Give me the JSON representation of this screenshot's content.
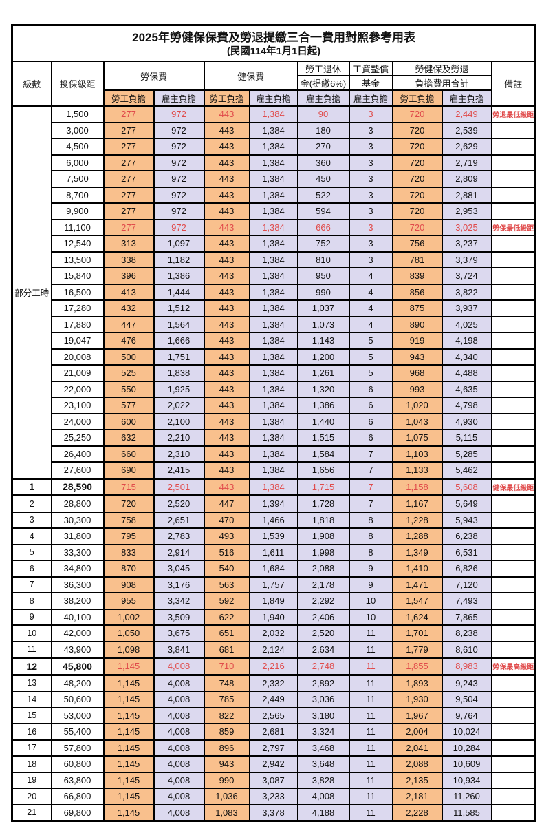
{
  "title": "2025年勞健保保費及勞退提繳三合一費用對照參考用表",
  "subtitle": "(民國114年1月1日起)",
  "header": {
    "level": "級數",
    "bracket": "投保級距",
    "labor_ins": "勞保費",
    "health_ins": "健保費",
    "pension_line1": "勞工退休",
    "pension_line2": "金(提繳6%)",
    "wage_fund_line1": "工資墊償",
    "wage_fund_line2": "基金",
    "total_line1": "勞健保及勞退",
    "total_line2": "負擔費用合計",
    "remark": "備註",
    "employee": "勞工負擔",
    "employer": "雇主負擔"
  },
  "part_time_label": "部分工時",
  "colors": {
    "employee_bg": "#f9c08d",
    "employer_bg": "#dcd9ef",
    "highlight_text": "#e04b4b"
  },
  "rows": [
    {
      "level": null,
      "bracket": "1,500",
      "values": [
        "277",
        "972",
        "443",
        "1,384",
        "90",
        "3",
        "720",
        "2,449"
      ],
      "remark": "勞退最低級距",
      "highlight": true,
      "thick": false
    },
    {
      "level": null,
      "bracket": "3,000",
      "values": [
        "277",
        "972",
        "443",
        "1,384",
        "180",
        "3",
        "720",
        "2,539"
      ],
      "remark": "",
      "highlight": false,
      "thick": false
    },
    {
      "level": null,
      "bracket": "4,500",
      "values": [
        "277",
        "972",
        "443",
        "1,384",
        "270",
        "3",
        "720",
        "2,629"
      ],
      "remark": "",
      "highlight": false,
      "thick": false
    },
    {
      "level": null,
      "bracket": "6,000",
      "values": [
        "277",
        "972",
        "443",
        "1,384",
        "360",
        "3",
        "720",
        "2,719"
      ],
      "remark": "",
      "highlight": false,
      "thick": false
    },
    {
      "level": null,
      "bracket": "7,500",
      "values": [
        "277",
        "972",
        "443",
        "1,384",
        "450",
        "3",
        "720",
        "2,809"
      ],
      "remark": "",
      "highlight": false,
      "thick": false
    },
    {
      "level": null,
      "bracket": "8,700",
      "values": [
        "277",
        "972",
        "443",
        "1,384",
        "522",
        "3",
        "720",
        "2,881"
      ],
      "remark": "",
      "highlight": false,
      "thick": false
    },
    {
      "level": null,
      "bracket": "9,900",
      "values": [
        "277",
        "972",
        "443",
        "1,384",
        "594",
        "3",
        "720",
        "2,953"
      ],
      "remark": "",
      "highlight": false,
      "thick": false
    },
    {
      "level": null,
      "bracket": "11,100",
      "values": [
        "277",
        "972",
        "443",
        "1,384",
        "666",
        "3",
        "720",
        "3,025"
      ],
      "remark": "勞保最低級距",
      "highlight": true,
      "thick": false
    },
    {
      "level": null,
      "bracket": "12,540",
      "values": [
        "313",
        "1,097",
        "443",
        "1,384",
        "752",
        "3",
        "756",
        "3,237"
      ],
      "remark": "",
      "highlight": false,
      "thick": false
    },
    {
      "level": null,
      "bracket": "13,500",
      "values": [
        "338",
        "1,182",
        "443",
        "1,384",
        "810",
        "3",
        "781",
        "3,379"
      ],
      "remark": "",
      "highlight": false,
      "thick": false
    },
    {
      "level": null,
      "bracket": "15,840",
      "values": [
        "396",
        "1,386",
        "443",
        "1,384",
        "950",
        "4",
        "839",
        "3,724"
      ],
      "remark": "",
      "highlight": false,
      "thick": false
    },
    {
      "level": null,
      "bracket": "16,500",
      "values": [
        "413",
        "1,444",
        "443",
        "1,384",
        "990",
        "4",
        "856",
        "3,822"
      ],
      "remark": "",
      "highlight": false,
      "thick": false
    },
    {
      "level": null,
      "bracket": "17,280",
      "values": [
        "432",
        "1,512",
        "443",
        "1,384",
        "1,037",
        "4",
        "875",
        "3,937"
      ],
      "remark": "",
      "highlight": false,
      "thick": false
    },
    {
      "level": null,
      "bracket": "17,880",
      "values": [
        "447",
        "1,564",
        "443",
        "1,384",
        "1,073",
        "4",
        "890",
        "4,025"
      ],
      "remark": "",
      "highlight": false,
      "thick": false
    },
    {
      "level": null,
      "bracket": "19,047",
      "values": [
        "476",
        "1,666",
        "443",
        "1,384",
        "1,143",
        "5",
        "919",
        "4,198"
      ],
      "remark": "",
      "highlight": false,
      "thick": false
    },
    {
      "level": null,
      "bracket": "20,008",
      "values": [
        "500",
        "1,751",
        "443",
        "1,384",
        "1,200",
        "5",
        "943",
        "4,340"
      ],
      "remark": "",
      "highlight": false,
      "thick": false
    },
    {
      "level": null,
      "bracket": "21,009",
      "values": [
        "525",
        "1,838",
        "443",
        "1,384",
        "1,261",
        "5",
        "968",
        "4,488"
      ],
      "remark": "",
      "highlight": false,
      "thick": false
    },
    {
      "level": null,
      "bracket": "22,000",
      "values": [
        "550",
        "1,925",
        "443",
        "1,384",
        "1,320",
        "6",
        "993",
        "4,635"
      ],
      "remark": "",
      "highlight": false,
      "thick": false
    },
    {
      "level": null,
      "bracket": "23,100",
      "values": [
        "577",
        "2,022",
        "443",
        "1,384",
        "1,386",
        "6",
        "1,020",
        "4,798"
      ],
      "remark": "",
      "highlight": false,
      "thick": false
    },
    {
      "level": null,
      "bracket": "24,000",
      "values": [
        "600",
        "2,100",
        "443",
        "1,384",
        "1,440",
        "6",
        "1,043",
        "4,930"
      ],
      "remark": "",
      "highlight": false,
      "thick": false
    },
    {
      "level": null,
      "bracket": "25,250",
      "values": [
        "632",
        "2,210",
        "443",
        "1,384",
        "1,515",
        "6",
        "1,075",
        "5,115"
      ],
      "remark": "",
      "highlight": false,
      "thick": false
    },
    {
      "level": null,
      "bracket": "26,400",
      "values": [
        "660",
        "2,310",
        "443",
        "1,384",
        "1,584",
        "7",
        "1,103",
        "5,285"
      ],
      "remark": "",
      "highlight": false,
      "thick": false
    },
    {
      "level": null,
      "bracket": "27,600",
      "values": [
        "690",
        "2,415",
        "443",
        "1,384",
        "1,656",
        "7",
        "1,133",
        "5,462"
      ],
      "remark": "",
      "highlight": false,
      "thick": false
    },
    {
      "level": "1",
      "bracket": "28,590",
      "values": [
        "715",
        "2,501",
        "443",
        "1,384",
        "1,715",
        "7",
        "1,158",
        "5,608"
      ],
      "remark": "健保最低級距",
      "highlight": true,
      "thick": true
    },
    {
      "level": "2",
      "bracket": "28,800",
      "values": [
        "720",
        "2,520",
        "447",
        "1,394",
        "1,728",
        "7",
        "1,167",
        "5,649"
      ],
      "remark": "",
      "highlight": false,
      "thick": false
    },
    {
      "level": "3",
      "bracket": "30,300",
      "values": [
        "758",
        "2,651",
        "470",
        "1,466",
        "1,818",
        "8",
        "1,228",
        "5,943"
      ],
      "remark": "",
      "highlight": false,
      "thick": false
    },
    {
      "level": "4",
      "bracket": "31,800",
      "values": [
        "795",
        "2,783",
        "493",
        "1,539",
        "1,908",
        "8",
        "1,288",
        "6,238"
      ],
      "remark": "",
      "highlight": false,
      "thick": false
    },
    {
      "level": "5",
      "bracket": "33,300",
      "values": [
        "833",
        "2,914",
        "516",
        "1,611",
        "1,998",
        "8",
        "1,349",
        "6,531"
      ],
      "remark": "",
      "highlight": false,
      "thick": false
    },
    {
      "level": "6",
      "bracket": "34,800",
      "values": [
        "870",
        "3,045",
        "540",
        "1,684",
        "2,088",
        "9",
        "1,410",
        "6,826"
      ],
      "remark": "",
      "highlight": false,
      "thick": false
    },
    {
      "level": "7",
      "bracket": "36,300",
      "values": [
        "908",
        "3,176",
        "563",
        "1,757",
        "2,178",
        "9",
        "1,471",
        "7,120"
      ],
      "remark": "",
      "highlight": false,
      "thick": false
    },
    {
      "level": "8",
      "bracket": "38,200",
      "values": [
        "955",
        "3,342",
        "592",
        "1,849",
        "2,292",
        "10",
        "1,547",
        "7,493"
      ],
      "remark": "",
      "highlight": false,
      "thick": false
    },
    {
      "level": "9",
      "bracket": "40,100",
      "values": [
        "1,002",
        "3,509",
        "622",
        "1,940",
        "2,406",
        "10",
        "1,624",
        "7,865"
      ],
      "remark": "",
      "highlight": false,
      "thick": false
    },
    {
      "level": "10",
      "bracket": "42,000",
      "values": [
        "1,050",
        "3,675",
        "651",
        "2,032",
        "2,520",
        "11",
        "1,701",
        "8,238"
      ],
      "remark": "",
      "highlight": false,
      "thick": false
    },
    {
      "level": "11",
      "bracket": "43,900",
      "values": [
        "1,098",
        "3,841",
        "681",
        "2,124",
        "2,634",
        "11",
        "1,779",
        "8,610"
      ],
      "remark": "",
      "highlight": false,
      "thick": false
    },
    {
      "level": "12",
      "bracket": "45,800",
      "values": [
        "1,145",
        "4,008",
        "710",
        "2,216",
        "2,748",
        "11",
        "1,855",
        "8,983"
      ],
      "remark": "勞保最高級距",
      "highlight": true,
      "thick": true
    },
    {
      "level": "13",
      "bracket": "48,200",
      "values": [
        "1,145",
        "4,008",
        "748",
        "2,332",
        "2,892",
        "11",
        "1,893",
        "9,243"
      ],
      "remark": "",
      "highlight": false,
      "thick": false
    },
    {
      "level": "14",
      "bracket": "50,600",
      "values": [
        "1,145",
        "4,008",
        "785",
        "2,449",
        "3,036",
        "11",
        "1,930",
        "9,504"
      ],
      "remark": "",
      "highlight": false,
      "thick": false
    },
    {
      "level": "15",
      "bracket": "53,000",
      "values": [
        "1,145",
        "4,008",
        "822",
        "2,565",
        "3,180",
        "11",
        "1,967",
        "9,764"
      ],
      "remark": "",
      "highlight": false,
      "thick": false
    },
    {
      "level": "16",
      "bracket": "55,400",
      "values": [
        "1,145",
        "4,008",
        "859",
        "2,681",
        "3,324",
        "11",
        "2,004",
        "10,024"
      ],
      "remark": "",
      "highlight": false,
      "thick": false
    },
    {
      "level": "17",
      "bracket": "57,800",
      "values": [
        "1,145",
        "4,008",
        "896",
        "2,797",
        "3,468",
        "11",
        "2,041",
        "10,284"
      ],
      "remark": "",
      "highlight": false,
      "thick": false
    },
    {
      "level": "18",
      "bracket": "60,800",
      "values": [
        "1,145",
        "4,008",
        "943",
        "2,942",
        "3,648",
        "11",
        "2,088",
        "10,609"
      ],
      "remark": "",
      "highlight": false,
      "thick": false
    },
    {
      "level": "19",
      "bracket": "63,800",
      "values": [
        "1,145",
        "4,008",
        "990",
        "3,087",
        "3,828",
        "11",
        "2,135",
        "10,934"
      ],
      "remark": "",
      "highlight": false,
      "thick": false
    },
    {
      "level": "20",
      "bracket": "66,800",
      "values": [
        "1,145",
        "4,008",
        "1,036",
        "3,233",
        "4,008",
        "11",
        "2,181",
        "11,260"
      ],
      "remark": "",
      "highlight": false,
      "thick": false
    },
    {
      "level": "21",
      "bracket": "69,800",
      "values": [
        "1,145",
        "4,008",
        "1,083",
        "3,378",
        "4,188",
        "11",
        "2,228",
        "11,585"
      ],
      "remark": "",
      "highlight": false,
      "thick": false
    }
  ]
}
